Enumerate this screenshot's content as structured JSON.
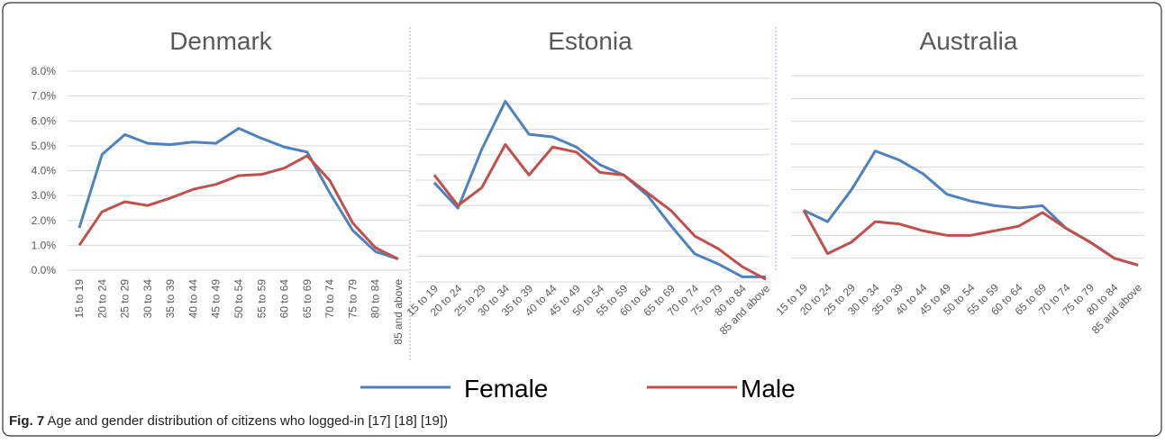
{
  "chart_data": [
    {
      "type": "line",
      "title": "Denmark",
      "categories": [
        "15 to 19",
        "20 to 24",
        "25 to 29",
        "30 to 34",
        "35 to 39",
        "40 to 44",
        "45 to 49",
        "50 to 54",
        "55 to 59",
        "60 to 64",
        "65 to 69",
        "70 to 74",
        "75 to 79",
        "80 to 84",
        "85 and above"
      ],
      "series": [
        {
          "name": "Female",
          "color": "#4f81bd",
          "values": [
            1.7,
            4.65,
            5.45,
            5.1,
            5.05,
            5.15,
            5.1,
            5.7,
            5.3,
            4.95,
            4.75,
            3.1,
            1.6,
            0.75,
            0.45
          ]
        },
        {
          "name": "Male",
          "color": "#c0504d",
          "values": [
            1.0,
            2.35,
            2.75,
            2.6,
            2.9,
            3.25,
            3.45,
            3.8,
            3.85,
            4.1,
            4.6,
            3.6,
            1.9,
            0.9,
            0.45
          ]
        }
      ],
      "ylim": [
        0,
        8
      ],
      "yticks": [
        {
          "value": 0,
          "label": "0.0%"
        },
        {
          "value": 1,
          "label": "1.0%"
        },
        {
          "value": 2,
          "label": "2.0%"
        },
        {
          "value": 3,
          "label": "3.0%"
        },
        {
          "value": 4,
          "label": "4.0%"
        },
        {
          "value": 5,
          "label": "5.0%"
        },
        {
          "value": 6,
          "label": "6.0%"
        },
        {
          "value": 7,
          "label": "7.0%"
        },
        {
          "value": 8,
          "label": "8.0%"
        }
      ],
      "grid": true,
      "tick_labels": true
    },
    {
      "type": "line",
      "title": "Estonia",
      "categories": [
        "15 to 19",
        "20 to 24",
        "25 to 29",
        "30 to 34",
        "35 to 39",
        "40 to 44",
        "45 to 49",
        "50 to 54",
        "55 to 59",
        "60 to 64",
        "65 to 69",
        "70 to 74",
        "75 to 79",
        "80 to 84",
        "85 and above"
      ],
      "series": [
        {
          "name": "Female",
          "color": "#4f81bd",
          "values": [
            3.9,
            2.9,
            5.2,
            7.1,
            5.8,
            5.7,
            5.3,
            4.6,
            4.2,
            3.4,
            2.2,
            1.1,
            0.7,
            0.2,
            0.2
          ]
        },
        {
          "name": "Male",
          "color": "#c0504d",
          "values": [
            4.2,
            3.0,
            3.7,
            5.4,
            4.2,
            5.3,
            5.1,
            4.3,
            4.2,
            3.5,
            2.8,
            1.8,
            1.3,
            0.6,
            0.1
          ]
        }
      ],
      "ylim": [
        0,
        8
      ],
      "yticks": [
        0,
        1,
        2,
        3,
        4,
        5,
        6,
        7,
        8
      ],
      "grid": true,
      "tick_labels": false
    },
    {
      "type": "line",
      "title": "Australia",
      "categories": [
        "15 to 19",
        "20 to 24",
        "25 to 29",
        "30 to 34",
        "35 to 39",
        "40 to 44",
        "45 to 49",
        "50 to 54",
        "55 to 59",
        "60 to 64",
        "65 to 69",
        "70 to 74",
        "75 to 79",
        "80 to 84",
        "85 and above"
      ],
      "series": [
        {
          "name": "Female",
          "color": "#4f81bd",
          "values": [
            3.1,
            2.6,
            4.0,
            5.7,
            5.3,
            4.7,
            3.8,
            3.5,
            3.3,
            3.2,
            3.3,
            2.3,
            1.7,
            1.0,
            0.7
          ]
        },
        {
          "name": "Male",
          "color": "#c0504d",
          "values": [
            3.1,
            1.2,
            1.7,
            2.6,
            2.5,
            2.2,
            2.0,
            2.0,
            2.2,
            2.4,
            3.0,
            2.3,
            1.7,
            1.0,
            0.7
          ]
        }
      ],
      "ylim": [
        0,
        9
      ],
      "yticks": [
        1,
        2,
        3,
        4,
        5,
        6,
        7,
        8,
        9
      ],
      "grid": true,
      "tick_labels": false
    }
  ],
  "caption": {
    "label": "Fig. 7",
    "text": "Age and gender distribution of citizens who logged-in [17] [18] [19])"
  }
}
